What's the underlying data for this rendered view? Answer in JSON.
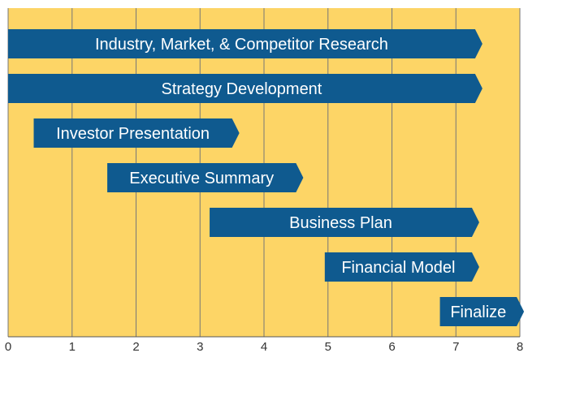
{
  "chart_data": {
    "type": "bar",
    "orientation": "horizontal",
    "subtype": "gantt",
    "xlim": [
      0,
      8
    ],
    "x_ticks": [
      "0",
      "1",
      "2",
      "3",
      "4",
      "5",
      "6",
      "7",
      "8"
    ],
    "grid": "vertical",
    "tasks": [
      {
        "label": "Industry, Market, & Competitor Research",
        "start": 0.0,
        "end": 7.3
      },
      {
        "label": "Strategy Development",
        "start": 0.0,
        "end": 7.3
      },
      {
        "label": "Investor Presentation",
        "start": 0.4,
        "end": 3.5
      },
      {
        "label": "Executive Summary",
        "start": 1.55,
        "end": 4.5
      },
      {
        "label": "Business Plan",
        "start": 3.15,
        "end": 7.25
      },
      {
        "label": "Financial Model",
        "start": 4.95,
        "end": 7.25
      },
      {
        "label": "Finalize",
        "start": 6.75,
        "end": 7.95
      }
    ],
    "colors": {
      "background": "#fdd566",
      "bar": "#0f5a8f",
      "grid": "#777777",
      "text": "#ffffff"
    }
  }
}
